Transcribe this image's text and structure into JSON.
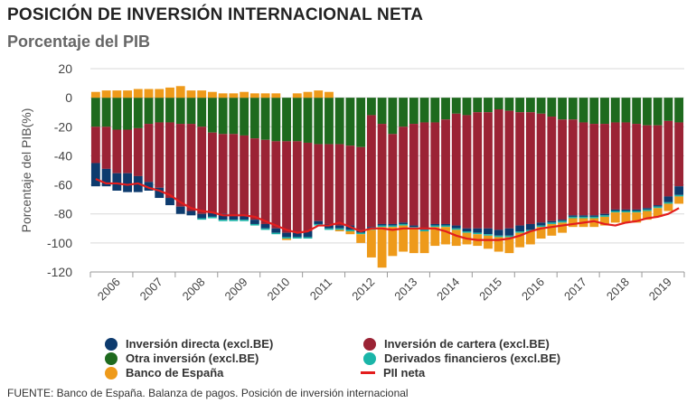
{
  "header": {
    "title": "POSICIÓN DE INVERSIÓN INTERNACIONAL NETA",
    "subtitle": "Porcentaje del PIB"
  },
  "footer": {
    "source": "FUENTE: Banco de España. Balanza de pagos. Posición de inversión internacional"
  },
  "chart_data": {
    "type": "bar",
    "stacked": true,
    "ylabel": "Porcentaje del PIB(%)",
    "ylim": [
      -120,
      20
    ],
    "yticks": [
      20,
      0,
      -20,
      -40,
      -60,
      -80,
      -100,
      -120
    ],
    "year_labels": [
      "2006",
      "2007",
      "2008",
      "2009",
      "2010",
      "2011",
      "2012",
      "2013",
      "2014",
      "2015",
      "2016",
      "2017",
      "2018",
      "2019"
    ],
    "grid": true,
    "legend_position": "bottom",
    "series": [
      {
        "name": "Otra inversión (excl.BE)",
        "color": "#1e6a1e",
        "values": [
          -20,
          -20,
          -22,
          -22,
          -21,
          -18,
          -17,
          -17,
          -18,
          -18,
          -20,
          -24,
          -25,
          -25,
          -26,
          -28,
          -29,
          -30,
          -30,
          -30,
          -31,
          -32,
          -32,
          -32,
          -33,
          -34,
          -12,
          -18,
          -25,
          -20,
          -18,
          -17,
          -17,
          -15,
          -11,
          -12,
          -10,
          -10,
          -8,
          -9,
          -10,
          -10,
          -11,
          -13,
          -15,
          -15,
          -17,
          -18,
          -18,
          -17,
          -17,
          -18,
          -19,
          -19,
          -16,
          -17
        ]
      },
      {
        "name": "Inversión de cartera (excl.BE)",
        "color": "#9b2335",
        "values": [
          -25,
          -29,
          -30,
          -30,
          -33,
          -40,
          -45,
          -52,
          -57,
          -60,
          -60,
          -55,
          -55,
          -56,
          -55,
          -56,
          -58,
          -60,
          -63,
          -63,
          -61,
          -53,
          -55,
          -56,
          -55,
          -57,
          -77,
          -69,
          -62,
          -66,
          -70,
          -73,
          -70,
          -72,
          -77,
          -78,
          -80,
          -80,
          -83,
          -81,
          -78,
          -77,
          -75,
          -72,
          -69,
          -66,
          -64,
          -63,
          -62,
          -60,
          -60,
          -59,
          -57,
          -55,
          -52,
          -44
        ]
      },
      {
        "name": "Inversión directa (excl.BE)",
        "color": "#0d3b6e",
        "values": [
          -16,
          -12,
          -12,
          -13,
          -11,
          -6,
          -7,
          -5,
          -5,
          -3,
          -3,
          -3,
          -4,
          -3,
          -3,
          -3,
          -3,
          -3,
          -3,
          -3,
          -4,
          -2,
          -3,
          -2,
          -3,
          -2,
          -1,
          -1,
          -1,
          -1,
          -1,
          -1,
          -1,
          -1,
          -2,
          -2,
          -3,
          -4,
          -4,
          -5,
          -4,
          -4,
          -2,
          -1,
          -1,
          -1,
          -1,
          -1,
          -1,
          -1,
          -1,
          -1,
          -1,
          -1,
          -4,
          -6
        ]
      },
      {
        "name": "Derivados financieros (excl.BE)",
        "color": "#1ab5a8",
        "values": [
          0,
          0,
          0,
          0,
          0,
          0,
          0,
          0,
          0,
          0,
          -1,
          -1,
          -1,
          -1,
          -1,
          -1,
          -1,
          -1,
          -1,
          -1,
          -1,
          -1,
          -1,
          -1,
          -1,
          -1,
          -1,
          -1,
          -1,
          -1,
          -1,
          -1,
          -1,
          -1,
          -1,
          -1,
          -1,
          -1,
          -1,
          -1,
          -1,
          -1,
          -1,
          -1,
          -1,
          -1,
          -1,
          -1,
          -1,
          -1,
          -1,
          -1,
          -1,
          -1,
          -1,
          -1
        ]
      },
      {
        "name": "Banco de España",
        "color": "#ee9a1a",
        "values": [
          4,
          5,
          5,
          5,
          6,
          6,
          6,
          7,
          8,
          5,
          5,
          4,
          3,
          3,
          4,
          3,
          3,
          3,
          -1,
          3,
          4,
          5,
          4,
          -1,
          -2,
          -6,
          -19,
          -28,
          -20,
          -18,
          -17,
          -15,
          -13,
          -12,
          -11,
          -8,
          -8,
          -9,
          -10,
          -11,
          -10,
          -9,
          -8,
          -8,
          -7,
          -6,
          -6,
          -6,
          -6,
          -7,
          -7,
          -7,
          -6,
          -6,
          -5,
          -5
        ]
      }
    ],
    "line": {
      "name": "PII neta",
      "color": "#e31d1d",
      "values": [
        -56,
        -59,
        -59,
        -60,
        -59,
        -62,
        -64,
        -67,
        -72,
        -76,
        -78,
        -79,
        -81,
        -81,
        -81,
        -82,
        -85,
        -88,
        -91,
        -93,
        -92,
        -88,
        -88,
        -86,
        -89,
        -92,
        -90,
        -90,
        -91,
        -90,
        -90,
        -90,
        -90,
        -92,
        -95,
        -97,
        -98,
        -98,
        -98,
        -97,
        -95,
        -92,
        -90,
        -89,
        -88,
        -87,
        -86,
        -85,
        -87,
        -88,
        -86,
        -85,
        -83,
        -82,
        -80,
        -76
      ]
    }
  }
}
